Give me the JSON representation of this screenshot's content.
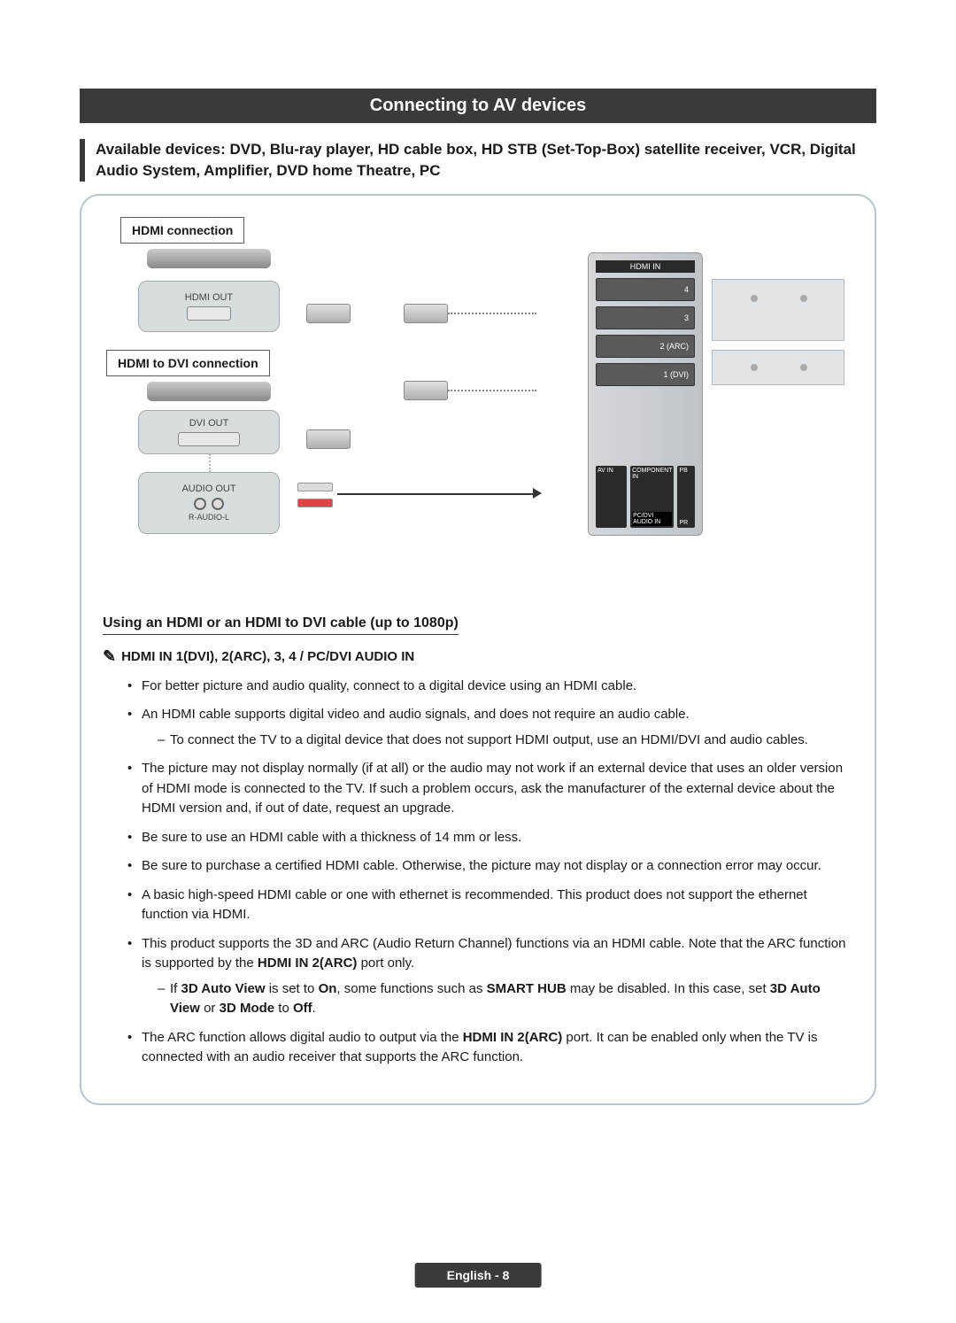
{
  "header": {
    "title": "Connecting to AV devices",
    "subtitle": "Available devices: DVD, Blu-ray player, HD cable box, HD STB (Set-Top-Box) satellite receiver, VCR, Digital Audio System, Amplifier, DVD home Theatre, PC"
  },
  "diagram": {
    "hdmi_label": "HDMI connection",
    "hdmi_dvi_label": "HDMI to DVI connection",
    "hdmi_out": "HDMI OUT",
    "dvi_out": "DVI OUT",
    "audio_out": "AUDIO OUT",
    "audio_rl": "R-AUDIO-L",
    "tv_header": "HDMI IN",
    "ports": [
      "4",
      "3",
      "2 (ARC)",
      "1 (DVI)"
    ],
    "bottom_labels": {
      "av": "AV IN",
      "comp": "COMPONENT IN",
      "pcdvi": "PC/DVI AUDIO IN",
      "pb": "PB",
      "pr": "PR"
    }
  },
  "usage": {
    "title": "Using an HDMI or an HDMI to DVI cable (up to 1080p)",
    "note": "HDMI IN 1(DVI), 2(ARC), 3,  4 / PC/DVI AUDIO IN",
    "bullets": [
      {
        "text": "For better picture and audio quality, connect to a digital device using an HDMI cable."
      },
      {
        "text": "An HDMI cable supports digital video and audio signals, and does not require an audio cable.",
        "sub": [
          "To connect the TV to a digital device that does not support HDMI output, use an HDMI/DVI and audio cables."
        ]
      },
      {
        "text": "The picture may not display normally (if at all) or the audio may not work if an external device that uses an older version of HDMI mode is connected to the TV. If such a problem occurs, ask the manufacturer of the external device about the HDMI version and, if out of date, request an upgrade."
      },
      {
        "text": "Be sure to use an HDMI cable with a thickness of 14 mm or less."
      },
      {
        "text": "Be sure to purchase a certified HDMI cable. Otherwise, the picture may not display or a connection error may occur."
      },
      {
        "text": "A basic high-speed HDMI cable or one with ethernet is recommended. This product does not support the ethernet function via HDMI."
      },
      {
        "html": "This product supports the 3D and ARC (Audio Return Channel) functions via an HDMI cable. Note that the ARC function is supported by the <b>HDMI IN 2(ARC)</b> port only.",
        "sub_html": [
          "If <b>3D Auto View</b> is set to <b>On</b>, some functions such as <b>SMART HUB</b> may be disabled. In this case, set <b>3D Auto View</b> or <b>3D Mode</b> to <b>Off</b>."
        ]
      },
      {
        "html": "The ARC function allows digital audio to output via the <b>HDMI IN 2(ARC)</b> port. It can be enabled only when the TV is connected with an audio receiver that supports the ARC function."
      }
    ]
  },
  "footer": "English - 8"
}
